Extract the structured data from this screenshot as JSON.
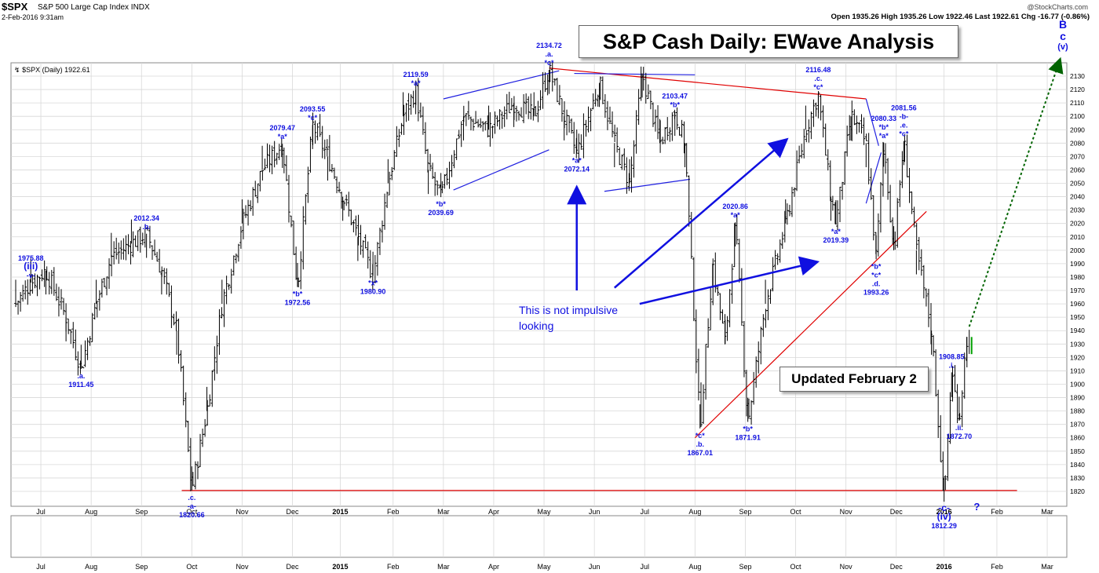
{
  "header": {
    "symbol": "$SPX",
    "index_name": "S&P 500 Large Cap Index  INDX",
    "date": "2-Feb-2016 9:31am",
    "brand": "@StockCharts.com",
    "quote": "Open 1935.26  High 1935.26  Low 1922.46  Last 1922.61  Chg -16.77 (-0.86%)",
    "legend": "$SPX (Daily) 1922.61"
  },
  "title": "S&P Cash Daily: EWave Analysis",
  "updated_note": "Updated February 2",
  "comment": {
    "line1": "This is not impulsive",
    "line2": "looking"
  },
  "wave_target": {
    "line1": "B",
    "line2": "c",
    "line3": "(v)"
  },
  "colors": {
    "wave_label": "#1010e0",
    "support": "#e00000",
    "price": "#000000",
    "grid": "#d8d8d8",
    "projection": "#006400",
    "trend_channel": "#2020e0"
  },
  "chart_data": {
    "type": "ohlc",
    "title": "S&P Cash Daily: EWave Analysis",
    "ylim": [
      1810,
      2140
    ],
    "yticks": [
      1820,
      1830,
      1840,
      1850,
      1860,
      1870,
      1880,
      1890,
      1900,
      1910,
      1920,
      1930,
      1940,
      1950,
      1960,
      1970,
      1980,
      1990,
      2000,
      2010,
      2020,
      2030,
      2040,
      2050,
      2060,
      2070,
      2080,
      2090,
      2100,
      2110,
      2120,
      2130
    ],
    "xticks": [
      {
        "label": "Jul",
        "pos": 0.5
      },
      {
        "label": "Aug",
        "pos": 1.5
      },
      {
        "label": "Sep",
        "pos": 2.5
      },
      {
        "label": "Oct",
        "pos": 3.5
      },
      {
        "label": "Nov",
        "pos": 4.5
      },
      {
        "label": "Dec",
        "pos": 5.5
      },
      {
        "label": "2015",
        "pos": 6.45,
        "bold": true
      },
      {
        "label": "Feb",
        "pos": 7.5
      },
      {
        "label": "Mar",
        "pos": 8.5
      },
      {
        "label": "Apr",
        "pos": 9.5
      },
      {
        "label": "May",
        "pos": 10.5
      },
      {
        "label": "Jun",
        "pos": 11.5
      },
      {
        "label": "Jul",
        "pos": 12.5
      },
      {
        "label": "Aug",
        "pos": 13.5
      },
      {
        "label": "Sep",
        "pos": 14.5
      },
      {
        "label": "Oct",
        "pos": 15.5
      },
      {
        "label": "Nov",
        "pos": 16.5
      },
      {
        "label": "Dec",
        "pos": 17.5
      },
      {
        "label": "2016",
        "pos": 18.45,
        "bold": true
      },
      {
        "label": "Feb",
        "pos": 19.5
      },
      {
        "label": "Mar",
        "pos": 20.5
      }
    ],
    "price_path": [
      [
        0.0,
        1960
      ],
      [
        0.3,
        1975.88
      ],
      [
        0.6,
        1985
      ],
      [
        1.0,
        1950
      ],
      [
        1.3,
        1911.45
      ],
      [
        1.6,
        1960
      ],
      [
        1.9,
        1995
      ],
      [
        2.3,
        2005
      ],
      [
        2.6,
        2012.34
      ],
      [
        2.9,
        1985
      ],
      [
        3.2,
        1940
      ],
      [
        3.5,
        1820.66
      ],
      [
        3.8,
        1880
      ],
      [
        4.1,
        1960
      ],
      [
        4.5,
        2020
      ],
      [
        4.9,
        2060
      ],
      [
        5.3,
        2079.47
      ],
      [
        5.6,
        1972.56
      ],
      [
        5.9,
        2093.55
      ],
      [
        6.2,
        2070
      ],
      [
        6.5,
        2040
      ],
      [
        6.8,
        2010
      ],
      [
        7.1,
        1980.9
      ],
      [
        7.4,
        2050
      ],
      [
        7.7,
        2100
      ],
      [
        7.95,
        2119.59
      ],
      [
        8.2,
        2060
      ],
      [
        8.45,
        2039.69
      ],
      [
        8.9,
        2100
      ],
      [
        9.4,
        2090
      ],
      [
        9.9,
        2110
      ],
      [
        10.3,
        2100
      ],
      [
        10.6,
        2134.72
      ],
      [
        10.9,
        2100
      ],
      [
        11.15,
        2072.14
      ],
      [
        11.6,
        2125
      ],
      [
        11.9,
        2080
      ],
      [
        12.2,
        2050
      ],
      [
        12.45,
        2132
      ],
      [
        12.8,
        2080
      ],
      [
        13.1,
        2103.47
      ],
      [
        13.3,
        2080
      ],
      [
        13.6,
        1867.01
      ],
      [
        13.85,
        1990
      ],
      [
        14.1,
        1930
      ],
      [
        14.3,
        2020.86
      ],
      [
        14.55,
        1871.91
      ],
      [
        14.9,
        1960
      ],
      [
        15.3,
        2020
      ],
      [
        15.7,
        2090
      ],
      [
        15.95,
        2116.48
      ],
      [
        16.2,
        2040
      ],
      [
        16.3,
        2019.39
      ],
      [
        16.6,
        2100
      ],
      [
        16.9,
        2080
      ],
      [
        17.1,
        1993.26
      ],
      [
        17.25,
        2080.33
      ],
      [
        17.45,
        2000
      ],
      [
        17.65,
        2081.56
      ],
      [
        17.9,
        2000
      ],
      [
        18.2,
        1940
      ],
      [
        18.45,
        1812.29
      ],
      [
        18.6,
        1908.85
      ],
      [
        18.75,
        1872.7
      ],
      [
        18.9,
        1935.26
      ],
      [
        18.95,
        1922.61
      ]
    ],
    "annotations": [
      {
        "label": "1975.88",
        "x": 0.3,
        "y": 1975.88,
        "pos": "above",
        "sub": [
          "(iii)",
          "-v-"
        ]
      },
      {
        "label": "1911.45",
        "x": 1.3,
        "y": 1911.45,
        "pos": "below",
        "sub": [
          ".a."
        ]
      },
      {
        "label": "2012.34",
        "x": 2.6,
        "y": 2012.34,
        "pos": "above",
        "sub": [
          ".b."
        ]
      },
      {
        "label": "1820.66",
        "x": 3.5,
        "y": 1820.66,
        "pos": "below",
        "sub": [
          ".c.",
          "-a-"
        ]
      },
      {
        "label": "2079.47",
        "x": 5.3,
        "y": 2079.47,
        "pos": "above",
        "sub": [
          "*a*"
        ]
      },
      {
        "label": "1972.56",
        "x": 5.6,
        "y": 1972.56,
        "pos": "below",
        "sub": [
          "*b*"
        ]
      },
      {
        "label": "2093.55",
        "x": 5.9,
        "y": 2093.55,
        "pos": "above",
        "sub": [
          "*c*"
        ]
      },
      {
        "label": "1980.90",
        "x": 7.1,
        "y": 1980.9,
        "pos": "below",
        "sub": [
          "*x*"
        ]
      },
      {
        "label": "2119.59",
        "x": 7.95,
        "y": 2119.59,
        "pos": "above",
        "sub": [
          "*a*"
        ]
      },
      {
        "label": "2039.69",
        "x": 8.45,
        "y": 2039.69,
        "pos": "below",
        "sub": [
          "*b*"
        ]
      },
      {
        "label": "2134.72",
        "x": 10.6,
        "y": 2134.72,
        "pos": "above",
        "sub": [
          ".a.",
          "*c*"
        ]
      },
      {
        "label": "2072.14",
        "x": 11.15,
        "y": 2072.14,
        "pos": "below",
        "sub": [
          "*a*"
        ]
      },
      {
        "label": "2103.47",
        "x": 13.1,
        "y": 2103.47,
        "pos": "above",
        "sub": [
          "*b*"
        ]
      },
      {
        "label": "1867.01",
        "x": 13.6,
        "y": 1867.01,
        "pos": "below",
        "sub": [
          "*c*",
          ".b."
        ]
      },
      {
        "label": "2020.86",
        "x": 14.3,
        "y": 2020.86,
        "pos": "above",
        "sub": [
          "*a*"
        ]
      },
      {
        "label": "1871.91",
        "x": 14.55,
        "y": 1871.91,
        "pos": "below",
        "sub": [
          "*b*"
        ]
      },
      {
        "label": "2116.48",
        "x": 15.95,
        "y": 2116.48,
        "pos": "above",
        "sub": [
          ".c.",
          "*c*"
        ]
      },
      {
        "label": "2019.39",
        "x": 16.3,
        "y": 2019.39,
        "pos": "below",
        "sub": [
          "*a*"
        ]
      },
      {
        "label": "1993.26",
        "x": 17.1,
        "y": 1993.26,
        "pos": "below",
        "sub": [
          "*b*",
          "*c*",
          ".d."
        ]
      },
      {
        "label": "2080.33",
        "x": 17.25,
        "y": 2080.33,
        "pos": "above",
        "sub": [
          "*b*",
          "*a*"
        ]
      },
      {
        "label": "2081.56",
        "x": 17.65,
        "y": 2081.56,
        "pos": "above",
        "sub": [
          "-b-",
          ".e.",
          "*c*"
        ]
      },
      {
        "label": "1812.29",
        "x": 18.45,
        "y": 1812.29,
        "pos": "below",
        "sub": [
          "-c-",
          "(iv)"
        ]
      },
      {
        "label": "1908.85",
        "x": 18.6,
        "y": 1908.85,
        "pos": "above",
        "sub": [
          ".i."
        ]
      },
      {
        "label": "1872.70",
        "x": 18.75,
        "y": 1872.7,
        "pos": "below",
        "sub": [
          ".ii."
        ]
      }
    ],
    "extra_labels": [
      {
        "text": "?",
        "x": 19.1,
        "y": 1806
      }
    ],
    "lines": [
      {
        "name": "support-line",
        "color": "#e00000",
        "x1": 3.3,
        "y1": 1820.66,
        "x2": 19.9,
        "y2": 1820.66
      },
      {
        "name": "upper-resistance",
        "color": "#e00000",
        "x1": 10.6,
        "y1": 2136,
        "x2": 16.9,
        "y2": 2113
      },
      {
        "name": "rising-trendline",
        "color": "#e00000",
        "x1": 13.5,
        "y1": 1860,
        "x2": 18.1,
        "y2": 2029
      },
      {
        "name": "channel-upper-1",
        "color": "#2020e0",
        "x1": 8.5,
        "y1": 2113,
        "x2": 10.8,
        "y2": 2134
      },
      {
        "name": "channel-lower-1",
        "color": "#2020e0",
        "x1": 8.7,
        "y1": 2045,
        "x2": 10.6,
        "y2": 2075
      },
      {
        "name": "channel-upper-2",
        "color": "#2020e0",
        "x1": 11.1,
        "y1": 2132,
        "x2": 13.5,
        "y2": 2131
      },
      {
        "name": "channel-lower-2",
        "color": "#2020e0",
        "x1": 11.7,
        "y1": 2044,
        "x2": 13.4,
        "y2": 2053
      },
      {
        "name": "wedge-upper",
        "color": "#2020e0",
        "x1": 16.9,
        "y1": 2113,
        "x2": 17.15,
        "y2": 2078
      },
      {
        "name": "wedge-lower",
        "color": "#2020e0",
        "x1": 16.9,
        "y1": 2035,
        "x2": 17.2,
        "y2": 2073
      }
    ],
    "arrows": [
      {
        "name": "arrow-up",
        "x1": 11.15,
        "y1": 1970,
        "x2": 11.15,
        "y2": 2046
      },
      {
        "name": "arrow-diagonal",
        "x1": 11.9,
        "y1": 1972,
        "x2": 15.3,
        "y2": 2082
      },
      {
        "name": "arrow-flat",
        "x1": 12.4,
        "y1": 1960,
        "x2": 15.9,
        "y2": 1991
      }
    ],
    "projection": {
      "x1": 18.95,
      "y1": 1943,
      "x2": 20.75,
      "y2": 2142
    }
  }
}
